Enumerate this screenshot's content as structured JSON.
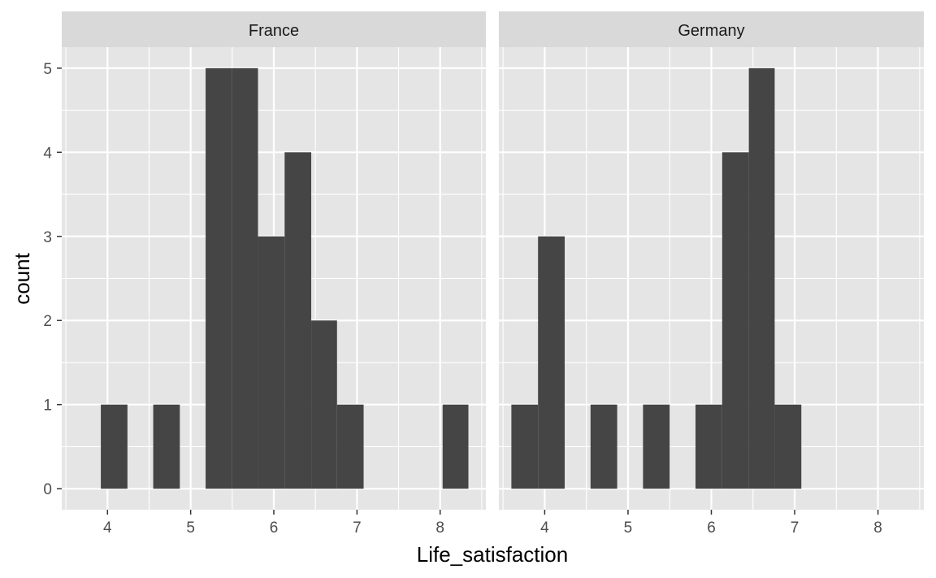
{
  "chart_data": {
    "type": "bar",
    "subtype": "histogram, faceted",
    "xlabel": "Life_satisfaction",
    "ylabel": "count",
    "xlim": [
      3.45,
      8.55
    ],
    "ylim": [
      -0.25,
      5.25
    ],
    "x_ticks": [
      4,
      5,
      6,
      7,
      8
    ],
    "y_ticks": [
      0,
      1,
      2,
      3,
      4,
      5
    ],
    "grid": true,
    "bar_color": "#454545",
    "panel_background": "#e5e5e5",
    "strip_background": "#d9d9d9",
    "grid_color": "#ffffff",
    "bin_width": 0.316,
    "panels": [
      {
        "name": "France",
        "bins": [
          {
            "x0": 3.92,
            "x1": 4.24,
            "count": 1
          },
          {
            "x0": 4.55,
            "x1": 4.87,
            "count": 1
          },
          {
            "x0": 5.18,
            "x1": 5.5,
            "count": 5
          },
          {
            "x0": 5.5,
            "x1": 5.81,
            "count": 5
          },
          {
            "x0": 5.81,
            "x1": 6.13,
            "count": 3
          },
          {
            "x0": 6.13,
            "x1": 6.45,
            "count": 4
          },
          {
            "x0": 6.45,
            "x1": 6.76,
            "count": 2
          },
          {
            "x0": 6.76,
            "x1": 7.08,
            "count": 1
          },
          {
            "x0": 8.03,
            "x1": 8.34,
            "count": 1
          }
        ]
      },
      {
        "name": "Germany",
        "bins": [
          {
            "x0": 3.6,
            "x1": 3.92,
            "count": 1
          },
          {
            "x0": 3.92,
            "x1": 4.24,
            "count": 3
          },
          {
            "x0": 4.55,
            "x1": 4.87,
            "count": 1
          },
          {
            "x0": 5.18,
            "x1": 5.5,
            "count": 1
          },
          {
            "x0": 5.81,
            "x1": 6.13,
            "count": 1
          },
          {
            "x0": 6.13,
            "x1": 6.45,
            "count": 4
          },
          {
            "x0": 6.45,
            "x1": 6.76,
            "count": 5
          },
          {
            "x0": 6.76,
            "x1": 7.08,
            "count": 1
          }
        ]
      }
    ]
  }
}
